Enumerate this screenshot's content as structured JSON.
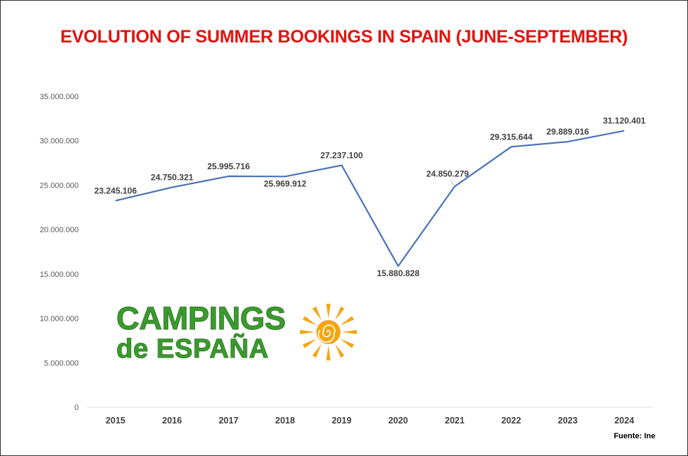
{
  "page": {
    "title": "EVOLUTION OF SUMMER BOOKINGS IN SPAIN (JUNE-SEPTEMBER)",
    "source": "Fuente: Ine",
    "title_color": "#e2130f",
    "line_color": "#4a73b8"
  },
  "logo": {
    "line1": "CAMPINGS",
    "line2": "de ESPAÑA",
    "color": "#3c9a2f",
    "sun_color": "#f3a614",
    "icon": "sun-icon"
  },
  "chart_data": {
    "type": "line",
    "title": "EVOLUTION OF SUMMER BOOKINGS IN SPAIN (JUNE-SEPTEMBER)",
    "categories": [
      "2015",
      "2016",
      "2017",
      "2018",
      "2019",
      "2020",
      "2021",
      "2022",
      "2023",
      "2024"
    ],
    "values": [
      23245106,
      24750321,
      25995716,
      25969912,
      27237100,
      15880828,
      24850279,
      29315644,
      29889016,
      31120401
    ],
    "data_labels": [
      "23.245.106",
      "24.750.321",
      "25.995.716",
      "25.969.912",
      "27.237.100",
      "15.880.828",
      "24.850.279",
      "29.315.644",
      "29.889.016",
      "31.120.401"
    ],
    "y_ticks": [
      0,
      5000000,
      10000000,
      15000000,
      20000000,
      25000000,
      30000000,
      35000000
    ],
    "y_tick_labels": [
      "0",
      "5.000.000",
      "10.000.000",
      "15.000.000",
      "20.000.000",
      "25.000.000",
      "30.000.000",
      "35.000.000"
    ],
    "ylim": [
      0,
      35000000
    ],
    "xlabel": "",
    "ylabel": "",
    "grid": false,
    "legend": "none"
  }
}
